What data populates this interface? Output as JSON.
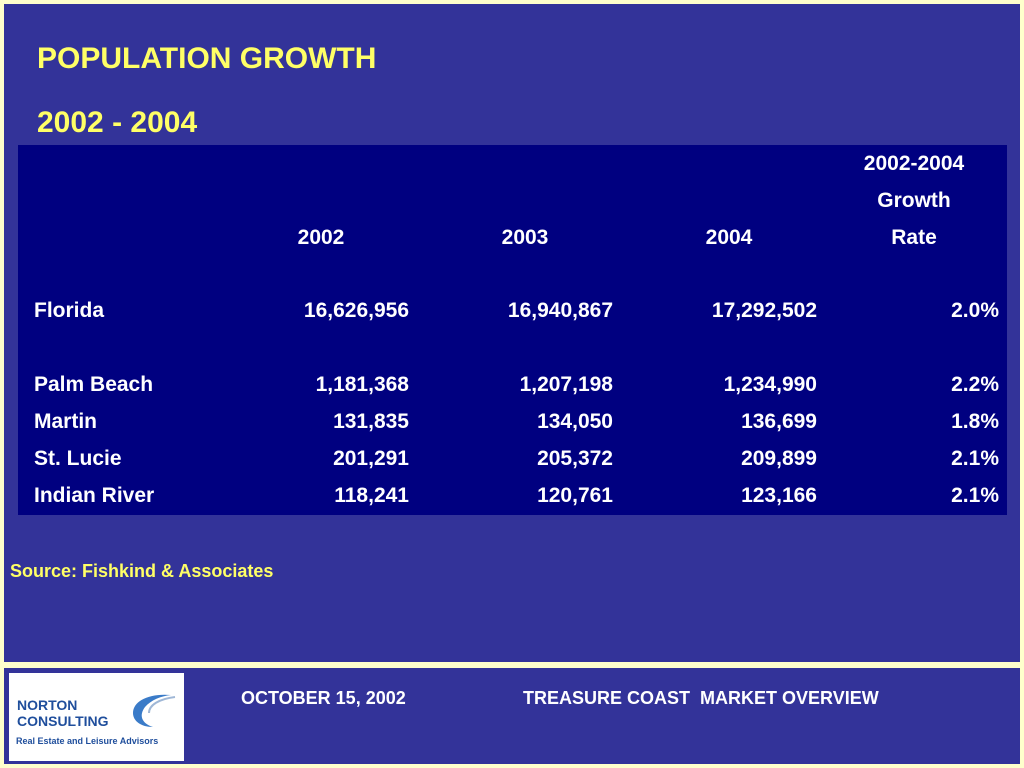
{
  "slide": {
    "title_line1": "POPULATION GROWTH",
    "title_line2": "2002 - 2004",
    "source": "Source: Fishkind & Associates"
  },
  "table": {
    "headers": {
      "col2002": "2002",
      "col2003": "2003",
      "col2004": "2004",
      "rate_line1": "2002-2004",
      "rate_line2": "Growth",
      "rate_line3": "Rate"
    },
    "rows": [
      {
        "label": "Florida",
        "y2002": "16,626,956",
        "y2003": "16,940,867",
        "y2004": "17,292,502",
        "rate": "2.0%"
      },
      {
        "label": "Palm Beach",
        "y2002": "1,181,368",
        "y2003": "1,207,198",
        "y2004": "1,234,990",
        "rate": "2.2%"
      },
      {
        "label": "Martin",
        "y2002": "131,835",
        "y2003": "134,050",
        "y2004": "136,699",
        "rate": "1.8%"
      },
      {
        "label": "St. Lucie",
        "y2002": "201,291",
        "y2003": "205,372",
        "y2004": "209,899",
        "rate": "2.1%"
      },
      {
        "label": "Indian River",
        "y2002": "118,241",
        "y2003": "120,761",
        "y2004": "123,166",
        "rate": "2.1%"
      }
    ]
  },
  "footer": {
    "date": "OCTOBER 15, 2002",
    "title": "TREASURE COAST  MARKET OVERVIEW",
    "logo": {
      "name_line1": "NORTON",
      "name_line2": "CONSULTING",
      "tagline": "Real Estate and Leisure Advisors"
    }
  },
  "colors": {
    "panel": "#333399",
    "table": "#000080",
    "title": "#FFFF66",
    "border": "#FFFFCC",
    "logo_text": "#1F4E9C"
  }
}
